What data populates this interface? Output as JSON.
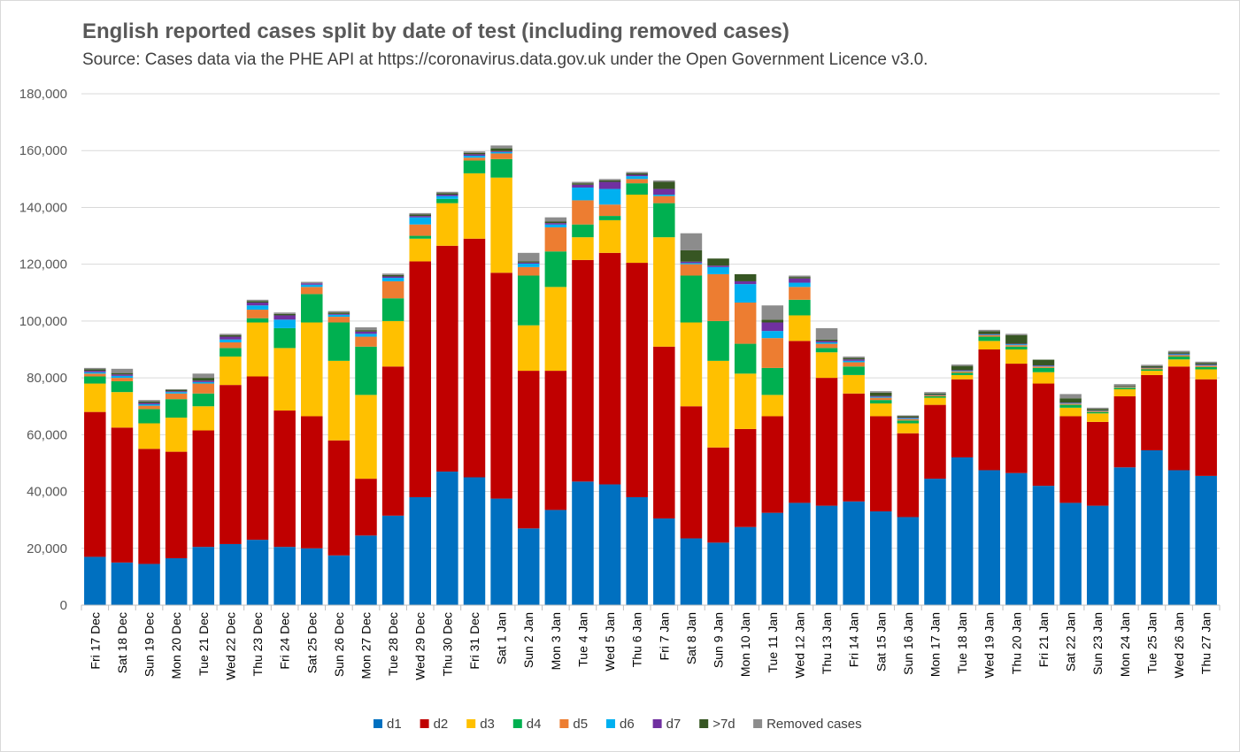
{
  "chart_data": {
    "type": "bar",
    "stacked": true,
    "title": "English reported cases split by date of test (including removed cases)",
    "subtitle": "Source: Cases data via the PHE API at https://coronavirus.data.gov.uk under the Open Government Licence v3.0.",
    "xlabel": "",
    "ylabel": "",
    "ylim": [
      0,
      180000
    ],
    "yticks": [
      0,
      20000,
      40000,
      60000,
      80000,
      100000,
      120000,
      140000,
      160000,
      180000
    ],
    "ytick_labels": [
      "0",
      "20,000",
      "40,000",
      "60,000",
      "80,000",
      "100,000",
      "120,000",
      "140,000",
      "160,000",
      "180,000"
    ],
    "grid": true,
    "legend_position": "bottom",
    "categories": [
      "Fri 17 Dec",
      "Sat 18 Dec",
      "Sun 19 Dec",
      "Mon 20 Dec",
      "Tue 21 Dec",
      "Wed 22 Dec",
      "Thu 23 Dec",
      "Fri 24 Dec",
      "Sat 25 Dec",
      "Sun 26 Dec",
      "Mon 27 Dec",
      "Tue 28 Dec",
      "Wed 29 Dec",
      "Thu 30 Dec",
      "Fri 31 Dec",
      "Sat 1 Jan",
      "Sun 2 Jan",
      "Mon 3 Jan",
      "Tue 4 Jan",
      "Wed 5 Jan",
      "Thu 6 Jan",
      "Fri 7 Jan",
      "Sat 8 Jan",
      "Sun 9 Jan",
      "Mon 10 Jan",
      "Tue 11 Jan",
      "Wed 12 Jan",
      "Thu 13 Jan",
      "Fri 14 Jan",
      "Sat 15 Jan",
      "Sun 16 Jan",
      "Mon 17 Jan",
      "Tue 18 Jan",
      "Wed 19 Jan",
      "Thu 20 Jan",
      "Fri 21 Jan",
      "Sat 22 Jan",
      "Sun 23 Jan",
      "Mon 24 Jan",
      "Tue 25 Jan",
      "Wed 26 Jan",
      "Thu 27 Jan"
    ],
    "series": [
      {
        "name": "d1",
        "color": "#0070c0",
        "values": [
          17000,
          15000,
          14500,
          16500,
          20500,
          21500,
          23000,
          20500,
          20000,
          17500,
          24500,
          31500,
          38000,
          47000,
          45000,
          37500,
          27000,
          33500,
          43500,
          42500,
          38000,
          30500,
          23500,
          22000,
          27500,
          32500,
          36000,
          35000,
          36500,
          33000,
          31000,
          44500,
          52000,
          47500,
          46500,
          42000,
          36000,
          35000,
          48500,
          54500,
          47500,
          45500
        ]
      },
      {
        "name": "d2",
        "color": "#c00000",
        "values": [
          51000,
          47500,
          40500,
          37500,
          41000,
          56000,
          57500,
          48000,
          46500,
          40500,
          20000,
          52500,
          83000,
          79500,
          84000,
          79500,
          55500,
          49000,
          78000,
          81500,
          82500,
          60500,
          46500,
          33500,
          34500,
          34000,
          57000,
          45000,
          38000,
          33500,
          29500,
          26000,
          27500,
          42500,
          38500,
          36000,
          30500,
          29500,
          25000,
          26500,
          36500,
          34000
        ]
      },
      {
        "name": "d3",
        "color": "#ffc000",
        "values": [
          10000,
          12500,
          9000,
          12000,
          8500,
          10000,
          19000,
          22000,
          33000,
          28000,
          29500,
          16000,
          8000,
          15000,
          23000,
          33500,
          16000,
          29500,
          8000,
          11500,
          24000,
          38500,
          29500,
          30500,
          19500,
          7500,
          9000,
          9000,
          6500,
          4500,
          3500,
          2500,
          1500,
          3000,
          5000,
          4000,
          3000,
          3000,
          2500,
          1500,
          2500,
          3500
        ]
      },
      {
        "name": "d4",
        "color": "#00b050",
        "values": [
          2500,
          3800,
          5000,
          6500,
          4500,
          3000,
          1500,
          7000,
          10000,
          13500,
          17000,
          8000,
          1000,
          1500,
          4500,
          6500,
          17500,
          12500,
          4500,
          1500,
          4000,
          12000,
          16500,
          14000,
          10500,
          9500,
          5500,
          1500,
          3000,
          1200,
          1000,
          500,
          800,
          1500,
          1000,
          1500,
          1000,
          500,
          500,
          500,
          1000,
          800
        ]
      },
      {
        "name": "d5",
        "color": "#ed7d31",
        "values": [
          1000,
          1200,
          1200,
          2000,
          3500,
          2000,
          3000,
          0,
          2500,
          2000,
          3500,
          6000,
          4000,
          0,
          1000,
          2000,
          3000,
          8500,
          8500,
          4000,
          1500,
          2500,
          4000,
          16500,
          14500,
          10500,
          4500,
          1500,
          1500,
          800,
          500,
          300,
          500,
          500,
          500,
          500,
          400,
          300,
          300,
          400,
          500,
          500
        ]
      },
      {
        "name": "d6",
        "color": "#00b0f0",
        "values": [
          500,
          700,
          500,
          500,
          500,
          1000,
          1500,
          3000,
          800,
          700,
          1000,
          1200,
          2500,
          1000,
          700,
          500,
          1200,
          1000,
          4500,
          5500,
          1000,
          500,
          400,
          2500,
          6500,
          2500,
          1500,
          500,
          500,
          300,
          300,
          100,
          200,
          200,
          300,
          200,
          200,
          100,
          100,
          100,
          300,
          200
        ]
      },
      {
        "name": "d7",
        "color": "#7030a0",
        "values": [
          500,
          500,
          500,
          300,
          500,
          1000,
          1000,
          1500,
          500,
          300,
          800,
          500,
          500,
          500,
          500,
          300,
          400,
          500,
          1000,
          2500,
          500,
          2000,
          500,
          500,
          1000,
          3000,
          1500,
          500,
          500,
          300,
          200,
          100,
          200,
          200,
          200,
          200,
          200,
          100,
          100,
          100,
          200,
          200
        ]
      },
      {
        "name": ">7d",
        "color": "#375623",
        "values": [
          500,
          500,
          500,
          500,
          1000,
          500,
          500,
          500,
          0,
          500,
          500,
          500,
          500,
          500,
          500,
          1000,
          400,
          500,
          500,
          500,
          500,
          2500,
          4000,
          2500,
          2500,
          1000,
          500,
          500,
          500,
          1200,
          500,
          500,
          1500,
          1000,
          3000,
          2000,
          1500,
          500,
          300,
          500,
          500,
          500
        ]
      },
      {
        "name": "Removed cases",
        "color": "#8c8c8c",
        "values": [
          500,
          1500,
          500,
          200,
          1500,
          500,
          500,
          500,
          500,
          500,
          1000,
          500,
          500,
          500,
          500,
          1000,
          3000,
          1500,
          500,
          500,
          500,
          500,
          6000,
          0,
          0,
          5000,
          500,
          4000,
          500,
          500,
          300,
          500,
          500,
          500,
          500,
          0,
          1500,
          500,
          500,
          500,
          500,
          500
        ]
      }
    ]
  }
}
